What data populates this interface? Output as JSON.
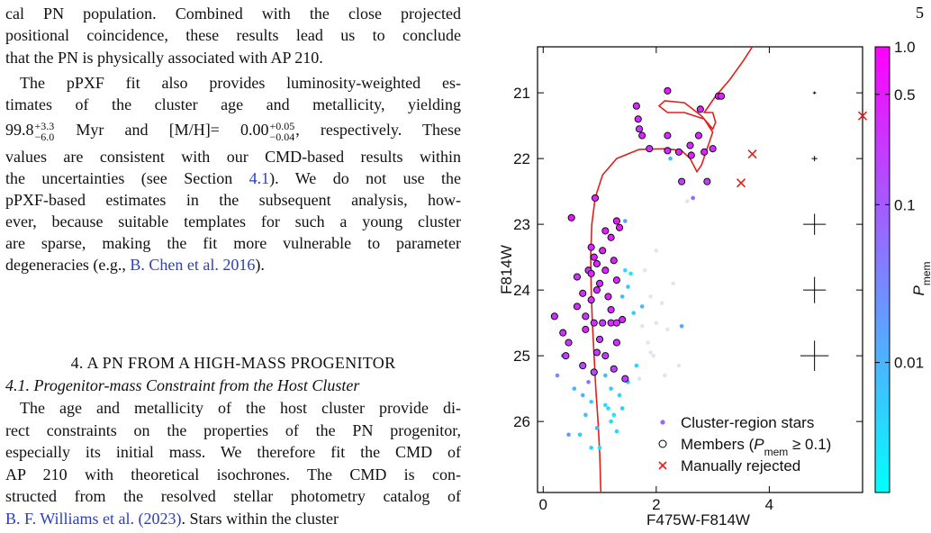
{
  "page_number": "5",
  "body": {
    "paragraphs": [
      [
        [
          "cal PN population. Combined with the close projected"
        ],
        [
          "positional coincidence, these results lead us to conclude"
        ],
        [
          "that the PN is physically associated with AP 210."
        ]
      ],
      [
        [
          "The pPXF fit also provides luminosity-weighted es-"
        ],
        [
          "timates of the cluster age and metallicity, yielding"
        ],
        [
          "99.8",
          {
            "sup": "+3.3",
            "sub": "−6.0"
          },
          " Myr and [M/H]= 0.00",
          {
            "sup": "+0.05",
            "sub": "−0.04"
          },
          ", respectively. These"
        ],
        [
          "values are consistent with our CMD-based results within"
        ],
        [
          "the uncertainties (see Section ",
          {
            "ref": "4.1"
          },
          "). We do not use the"
        ],
        [
          "pPXF-based estimates in the subsequent analysis, how-"
        ],
        [
          "ever, because suitable templates for such a young cluster"
        ],
        [
          "are sparse, making the fit more vulnerable to parameter"
        ],
        [
          "degeneracies (e.g., ",
          {
            "ref": "B. Chen et al. 2016"
          },
          ")."
        ]
      ]
    ],
    "section_heading": "4. A PN FROM A HIGH-MASS PROGENITOR",
    "subsection_heading": "4.1. Progenitor-mass Constraint from the Host Cluster",
    "paragraph_after": [
      [
        "The age and metallicity of the host cluster provide di-"
      ],
      [
        "rect constraints on the properties of the PN progenitor,"
      ],
      [
        "especially its initial mass. We therefore fit the CMD of"
      ],
      [
        "AP 210 with theoretical isochrones. The CMD is con-"
      ],
      [
        "structed from the resolved stellar photometry catalog of"
      ],
      [
        {
          "ref": "B. F. Williams et al. (2023)"
        },
        ". Stars within the cluster"
      ]
    ]
  },
  "chart_data": {
    "type": "scatter",
    "xlabel": "F475W-F814W",
    "ylabel": "F814W",
    "xlim": [
      -0.1,
      5.65
    ],
    "ylim": [
      20.3,
      27.08
    ],
    "y_inverted": true,
    "xticks": [
      0,
      2,
      4
    ],
    "yticks": [
      21,
      22,
      23,
      24,
      25,
      26
    ],
    "legend": "lower right",
    "cmap": [
      "#00ffff",
      "#ff00ff"
    ],
    "below_range_color": "#e2e6ea",
    "colorbar": {
      "label": [
        {
          "italic": "P",
          "sub": "mem"
        }
      ],
      "log": true,
      "clim": [
        0.0015,
        1.0
      ],
      "ticks": [
        {
          "value": 1.0,
          "label": "1.0"
        },
        0.5,
        0.1,
        0.01
      ]
    },
    "lines": [
      {
        "color": "#e0201b",
        "x": [
          1.02,
          1.0,
          0.97,
          0.93,
          0.9,
          0.87,
          0.85,
          0.84,
          0.86,
          0.92,
          1.05,
          1.3,
          1.7,
          2.2,
          2.45,
          2.6,
          2.72,
          2.8,
          2.9,
          3.0,
          2.85,
          2.5,
          2.2,
          2.05,
          2.15,
          2.5,
          2.8,
          3.0,
          3.05,
          3.0,
          2.85,
          3.05,
          3.3,
          3.55,
          3.7
        ],
        "y": [
          27.08,
          26.5,
          26.0,
          25.5,
          25.0,
          24.5,
          24.0,
          23.5,
          23.0,
          22.6,
          22.25,
          22.0,
          21.86,
          21.85,
          21.88,
          22.0,
          22.2,
          22.1,
          21.85,
          21.6,
          21.4,
          21.3,
          21.3,
          21.2,
          21.12,
          21.15,
          21.35,
          21.55,
          21.45,
          21.3,
          21.3,
          21.05,
          20.8,
          20.5,
          20.3
        ]
      }
    ],
    "series": [
      {
        "name": "Cluster-region stars",
        "marker": "o",
        "color": "#9a6af2",
        "x": [
          0.85,
          0.75,
          1.1,
          0.95,
          0.65,
          0.45,
          1.2,
          1.35,
          1.5,
          1.25,
          0.55,
          1.15,
          1.0,
          1.4,
          0.85,
          1.55,
          1.45,
          1.6,
          1.75,
          1.4,
          1.5,
          2.45,
          2.25,
          1.45,
          0.25,
          1.3,
          0.7,
          1.1,
          1.65,
          1.2,
          2.65,
          0.8,
          0.35,
          1.8,
          1.9,
          2.0,
          1.85,
          1.95,
          2.1,
          2.2,
          1.75,
          2.3,
          2.4,
          2.0,
          1.7,
          2.55,
          1.9,
          2.15
        ],
        "y": [
          25.7,
          25.9,
          25.75,
          26.1,
          26.2,
          26.2,
          26.0,
          25.6,
          25.4,
          25.9,
          25.5,
          25.8,
          26.4,
          25.8,
          26.4,
          23.75,
          23.7,
          24.35,
          24.25,
          24.1,
          23.95,
          24.55,
          22.0,
          22.95,
          25.3,
          26.15,
          25.6,
          25.3,
          25.15,
          25.5,
          22.6,
          25.4,
          25.0,
          23.7,
          24.1,
          24.5,
          24.8,
          25.0,
          24.2,
          24.6,
          24.55,
          23.9,
          25.15,
          23.4,
          25.35,
          22.65,
          24.95,
          25.3
        ],
        "p": [
          0.005,
          0.008,
          0.004,
          0.01,
          0.006,
          0.02,
          0.004,
          0.005,
          0.008,
          0.003,
          0.01,
          0.004,
          0.003,
          0.006,
          0.004,
          0.003,
          0.004,
          0.006,
          0.01,
          0.008,
          0.006,
          0.015,
          0.01,
          0.02,
          0.03,
          0.004,
          0.01,
          0.008,
          0.005,
          0.006,
          0.08,
          0.05,
          0.05,
          0.001,
          0.001,
          0.001,
          0.001,
          0.001,
          0.001,
          0.001,
          0.001,
          0.001,
          0.001,
          0.001,
          0.001,
          0.001,
          0.001,
          0.001
        ]
      },
      {
        "name": [
          "Members (",
          {
            "italic": "P",
            "sub": "mem"
          },
          " ≥ 0.1)"
        ],
        "marker": "o",
        "edgecolor": "#000000",
        "x": [
          2.2,
          1.65,
          1.68,
          1.7,
          1.75,
          1.88,
          2.2,
          2.4,
          2.6,
          2.62,
          2.75,
          2.85,
          3.0,
          3.1,
          3.15,
          2.78,
          2.9,
          2.45,
          2.2,
          0.5,
          0.92,
          1.3,
          1.35,
          1.1,
          1.2,
          1.05,
          0.85,
          0.9,
          0.95,
          0.8,
          0.85,
          1.25,
          1.3,
          1.0,
          0.95,
          1.15,
          0.6,
          0.75,
          0.2,
          0.75,
          0.9,
          1.05,
          1.2,
          1.4,
          1.3,
          0.45,
          0.35,
          1.0,
          0.95,
          1.1,
          0.7,
          1.25,
          1.45,
          0.9,
          1.2,
          0.7,
          1.3,
          0.4,
          0.6,
          1.1,
          0.85
        ],
        "y": [
          20.97,
          21.2,
          21.4,
          21.55,
          21.65,
          21.85,
          21.88,
          21.9,
          21.8,
          21.95,
          21.65,
          21.9,
          21.85,
          21.05,
          21.05,
          21.25,
          22.35,
          22.35,
          21.65,
          22.9,
          22.6,
          22.95,
          23.05,
          23.1,
          23.2,
          23.4,
          23.35,
          23.5,
          23.6,
          23.7,
          23.75,
          23.55,
          23.85,
          23.9,
          24.0,
          24.1,
          24.25,
          24.4,
          24.4,
          24.6,
          24.5,
          24.5,
          24.5,
          24.45,
          24.8,
          24.8,
          24.65,
          24.75,
          24.95,
          25.0,
          25.15,
          25.2,
          25.35,
          25.25,
          24.3,
          24.05,
          24.5,
          25.0,
          23.8,
          23.7,
          24.15
        ],
        "p": [
          0.5,
          0.35,
          0.3,
          0.25,
          0.4,
          0.3,
          0.45,
          0.35,
          0.3,
          0.4,
          0.35,
          0.45,
          0.3,
          0.5,
          0.4,
          0.35,
          0.2,
          0.2,
          0.3,
          0.6,
          0.4,
          0.5,
          0.55,
          0.45,
          0.5,
          0.4,
          0.35,
          0.45,
          0.4,
          0.3,
          0.35,
          0.45,
          0.4,
          0.3,
          0.35,
          0.4,
          0.3,
          0.25,
          0.3,
          0.35,
          0.3,
          0.25,
          0.3,
          0.35,
          0.3,
          0.25,
          0.3,
          0.2,
          0.25,
          0.2,
          0.15,
          0.2,
          0.2,
          0.15,
          0.3,
          0.3,
          0.25,
          0.2,
          0.3,
          0.35,
          0.3
        ]
      },
      {
        "name": "Manually rejected",
        "marker": "x",
        "color": "#e0201b",
        "x": [
          5.65,
          3.7,
          3.5
        ],
        "y": [
          21.35,
          21.93,
          22.37
        ]
      }
    ],
    "error_bars": {
      "color": "#000000",
      "x": [
        4.8,
        4.8,
        4.8,
        4.8,
        4.8
      ],
      "y": [
        21,
        22,
        23,
        24,
        25
      ],
      "xerr": [
        0.03,
        0.05,
        0.2,
        0.2,
        0.25
      ],
      "yerr": [
        0.02,
        0.04,
        0.16,
        0.2,
        0.23
      ]
    }
  }
}
